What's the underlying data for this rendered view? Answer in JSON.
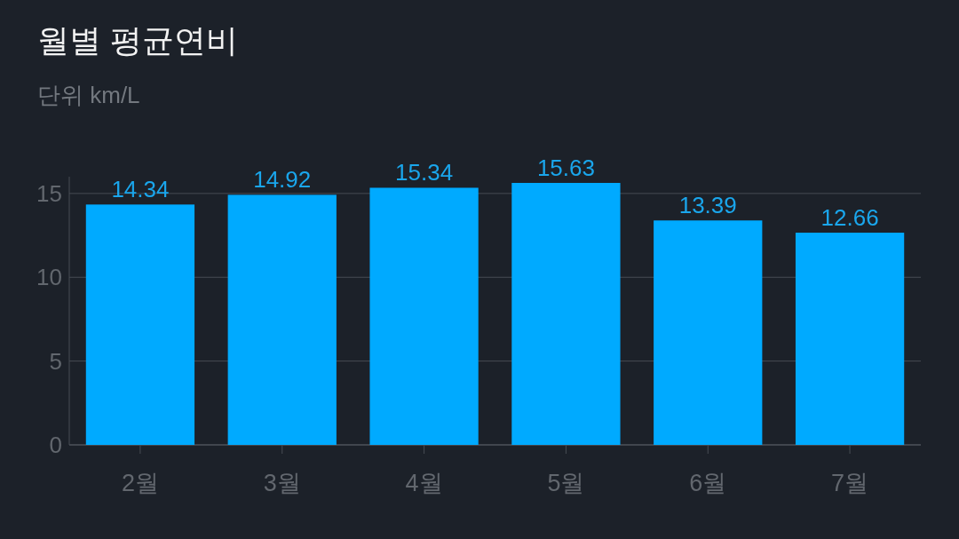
{
  "chart_data": {
    "type": "bar",
    "title": "월별 평균연비",
    "subtitle": "단위 km/L",
    "categories": [
      "2월",
      "3월",
      "4월",
      "5월",
      "6월",
      "7월"
    ],
    "values": [
      14.34,
      14.92,
      15.34,
      15.63,
      13.39,
      12.66
    ],
    "color": "#00aaff",
    "ylim": [
      0,
      16
    ],
    "yticks": [
      0,
      5,
      10,
      15
    ],
    "grid": "y",
    "data_labels": true
  }
}
